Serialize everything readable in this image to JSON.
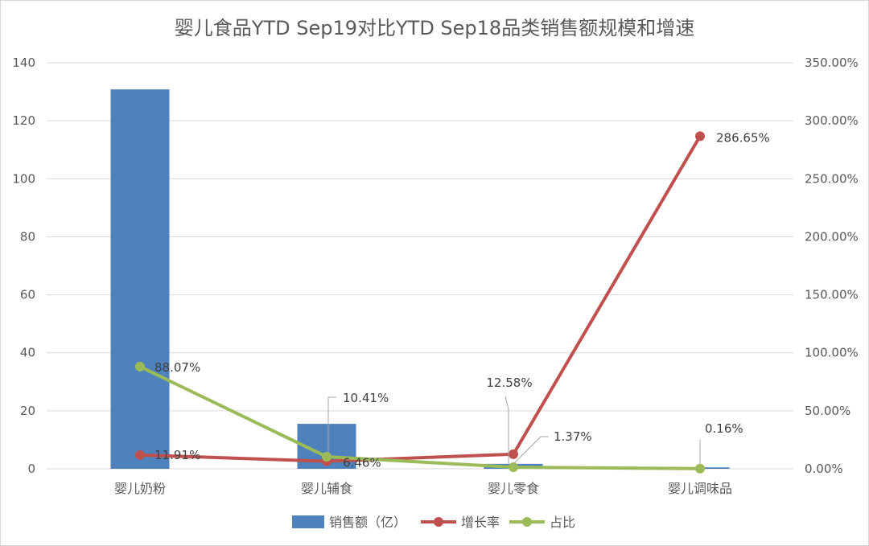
{
  "chart_data": {
    "type": "bar",
    "title": "婴儿食品YTD Sep19对比YTD Sep18品类销售额规模和增速",
    "categories": [
      "婴儿奶粉",
      "婴儿辅食",
      "婴儿零食",
      "婴儿调味品"
    ],
    "series": [
      {
        "name": "销售额（亿）",
        "type": "bar",
        "axis": "left",
        "color": "#4f81bd",
        "values": [
          130.8,
          15.5,
          1.7,
          0.5
        ]
      },
      {
        "name": "增长率",
        "type": "line",
        "axis": "right",
        "color": "#c0504d",
        "values": [
          11.91,
          6.46,
          12.58,
          286.65
        ],
        "labels": [
          "11.91%",
          "6.46%",
          "12.58%",
          "286.65%"
        ]
      },
      {
        "name": "占比",
        "type": "line",
        "axis": "right",
        "color": "#9bbb59",
        "values": [
          88.07,
          10.41,
          1.37,
          0.16
        ],
        "labels": [
          "88.07%",
          "10.41%",
          "1.37%",
          "0.16%"
        ]
      }
    ],
    "y_left": {
      "range": [
        0,
        140
      ],
      "ticks": [
        0,
        20,
        40,
        60,
        80,
        100,
        120,
        140
      ],
      "tick_labels": [
        "0",
        "20",
        "40",
        "60",
        "80",
        "100",
        "120",
        "140"
      ]
    },
    "y_right": {
      "range": [
        0,
        350
      ],
      "ticks": [
        0,
        50,
        100,
        150,
        200,
        250,
        300,
        350
      ],
      "tick_labels": [
        "0.00%",
        "50.00%",
        "100.00%",
        "150.00%",
        "200.00%",
        "250.00%",
        "300.00%",
        "350.00%"
      ]
    },
    "grid": true,
    "legend_position": "bottom",
    "gridline_color": "#d9d9d9"
  }
}
